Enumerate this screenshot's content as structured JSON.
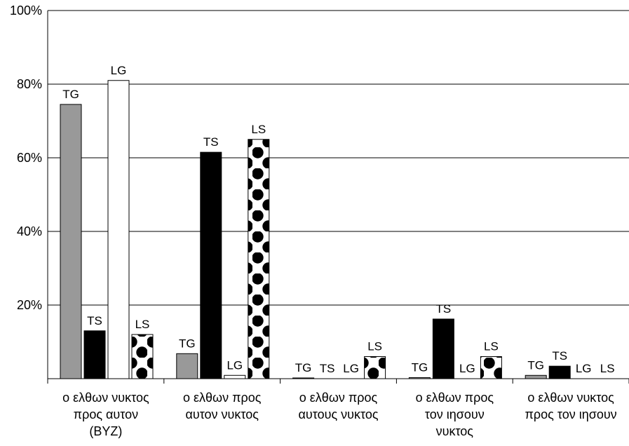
{
  "chart_data": {
    "type": "bar",
    "ylim": [
      0,
      100
    ],
    "yticks": [
      20,
      40,
      60,
      80,
      100
    ],
    "ytick_labels": [
      "20%",
      "40%",
      "60%",
      "80%",
      "100%"
    ],
    "grid": true,
    "categories": [
      [
        "ο ελθων νυκτος",
        "προς αυτον",
        "(BYZ)"
      ],
      [
        "ο ελθων προς",
        "αυτον νυκτος"
      ],
      [
        "ο ελθων προς",
        "αυτους νυκτος"
      ],
      [
        "ο ελθων προς",
        "τον ιησουν",
        "νυκτος"
      ],
      [
        "ο ελθων νυκτος",
        "προς τον ιησουν"
      ]
    ],
    "series": [
      {
        "name": "TG",
        "label": "TG",
        "fill": "#999999",
        "pattern": "solid",
        "values": [
          74.5,
          6.8,
          0.2,
          0.3,
          0.9
        ]
      },
      {
        "name": "TS",
        "label": "TS",
        "fill": "#000000",
        "pattern": "solid",
        "values": [
          13.0,
          61.5,
          0.0,
          16.2,
          3.4
        ]
      },
      {
        "name": "LG",
        "label": "LG",
        "fill": "#ffffff",
        "pattern": "solid",
        "values": [
          81.0,
          0.9,
          0.0,
          0.0,
          0.0
        ]
      },
      {
        "name": "LS",
        "label": "LS",
        "fill": "#000000",
        "pattern": "dots",
        "values": [
          12.0,
          65.0,
          6.0,
          6.0,
          0.0
        ]
      }
    ]
  }
}
